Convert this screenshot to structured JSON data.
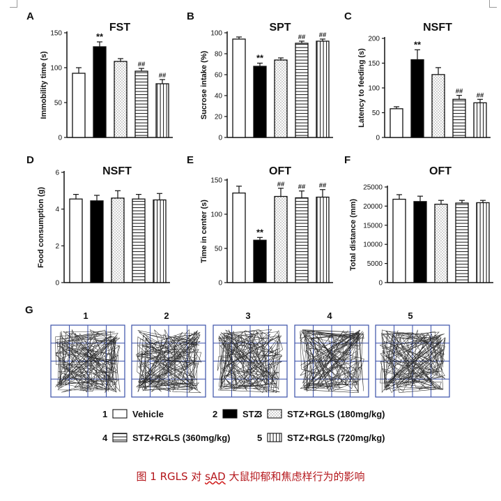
{
  "chart_data": [
    {
      "panel": "A",
      "type": "bar",
      "title": "FST",
      "ylabel": "Immobility time (s)",
      "ylim": [
        0,
        150
      ],
      "yticks": [
        0,
        50,
        100,
        150
      ],
      "groups": [
        "1",
        "2",
        "3",
        "4",
        "5"
      ],
      "values": [
        92,
        130,
        109,
        95,
        77
      ],
      "errors": [
        8,
        7,
        4,
        4,
        6
      ],
      "annotations": [
        "",
        "**",
        "",
        "##",
        "##"
      ]
    },
    {
      "panel": "B",
      "type": "bar",
      "title": "SPT",
      "ylabel": "Sucrose intake (%)",
      "ylim": [
        0,
        100
      ],
      "yticks": [
        0,
        20,
        40,
        60,
        80,
        100
      ],
      "groups": [
        "1",
        "2",
        "3",
        "4",
        "5"
      ],
      "values": [
        94,
        68,
        74,
        90,
        92
      ],
      "errors": [
        2,
        3,
        2,
        2,
        2
      ],
      "annotations": [
        "",
        "**",
        "",
        "##",
        "##"
      ]
    },
    {
      "panel": "C",
      "type": "bar",
      "title": "NSFT",
      "ylabel": "Latency to feeding (s)",
      "ylim": [
        0,
        200
      ],
      "yticks": [
        0,
        50,
        100,
        150,
        200
      ],
      "groups": [
        "1",
        "2",
        "3",
        "4",
        "5"
      ],
      "values": [
        58,
        157,
        127,
        77,
        70
      ],
      "errors": [
        4,
        20,
        14,
        8,
        7
      ],
      "annotations": [
        "",
        "**",
        "",
        "##",
        "##"
      ]
    },
    {
      "panel": "D",
      "type": "bar",
      "title": "NSFT",
      "ylabel": "Food consumption (g)",
      "ylim": [
        0,
        6
      ],
      "yticks": [
        0,
        2,
        4,
        6
      ],
      "groups": [
        "1",
        "2",
        "3",
        "4",
        "5"
      ],
      "values": [
        4.55,
        4.45,
        4.6,
        4.55,
        4.5
      ],
      "errors": [
        0.25,
        0.3,
        0.4,
        0.25,
        0.35
      ],
      "annotations": [
        "",
        "",
        "",
        "",
        ""
      ]
    },
    {
      "panel": "E",
      "type": "bar",
      "title": "OFT",
      "ylabel": "Time in center (s)",
      "ylim": [
        0,
        150
      ],
      "yticks": [
        0,
        50,
        100,
        150
      ],
      "groups": [
        "1",
        "2",
        "3",
        "4",
        "5"
      ],
      "values": [
        131,
        62,
        126,
        124,
        125
      ],
      "errors": [
        10,
        4,
        12,
        10,
        11
      ],
      "annotations": [
        "",
        "**",
        "##",
        "##",
        "##"
      ]
    },
    {
      "panel": "F",
      "type": "bar",
      "title": "OFT",
      "ylabel": "Total distance (mm)",
      "ylim": [
        0,
        25000
      ],
      "yticks": [
        0,
        5000,
        10000,
        15000,
        20000,
        25000
      ],
      "groups": [
        "1",
        "2",
        "3",
        "4",
        "5"
      ],
      "values": [
        21800,
        21200,
        20500,
        20800,
        20900
      ],
      "errors": [
        1200,
        1400,
        1000,
        700,
        600
      ],
      "annotations": [
        "",
        "",
        "",
        "",
        ""
      ]
    }
  ],
  "panel_g": {
    "letter": "G",
    "labels": [
      "1",
      "2",
      "3",
      "4",
      "5"
    ]
  },
  "legend": [
    {
      "num": "1",
      "label": "Vehicle",
      "pattern": "white"
    },
    {
      "num": "2",
      "label": "STZ",
      "pattern": "black"
    },
    {
      "num": "3",
      "label": "STZ+RGLS (180mg/kg)",
      "pattern": "dots"
    },
    {
      "num": "4",
      "label": "STZ+RGLS (360mg/kg)",
      "pattern": "hstripes"
    },
    {
      "num": "5",
      "label": "STZ+RGLS (720mg/kg)",
      "pattern": "vstripes"
    }
  ],
  "caption": {
    "prefix": "图 1 RGLS 对 ",
    "underlined": "sAD",
    "suffix": " 大鼠抑郁和焦虑样行为的影响"
  },
  "colors": {
    "grid_line": "#3a4fa8",
    "caption": "#b4161b",
    "ink": "#111111"
  }
}
